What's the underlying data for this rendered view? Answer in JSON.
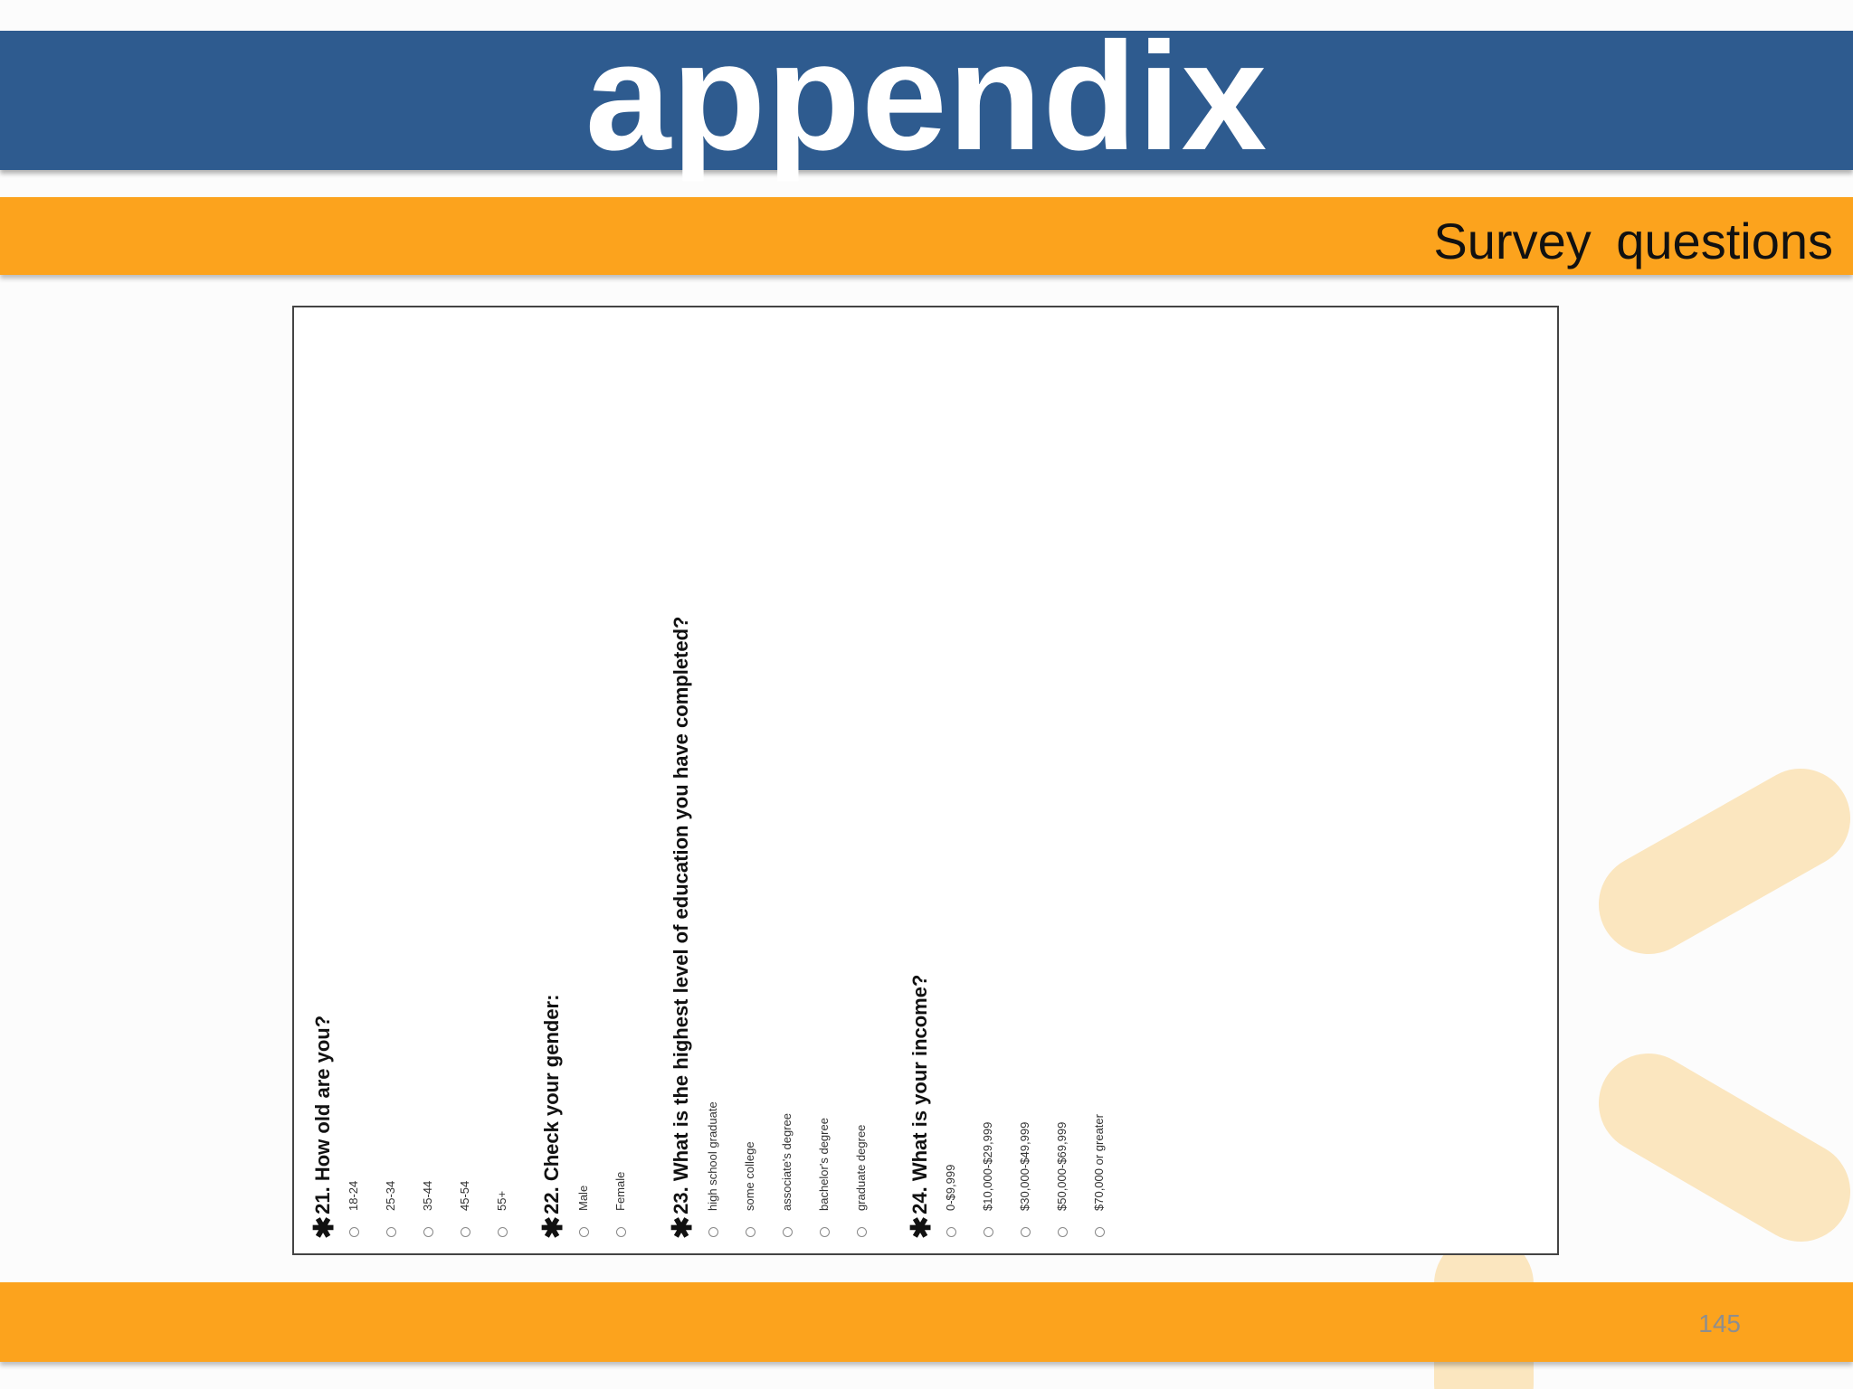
{
  "slide": {
    "title": "appendix",
    "subtitle": "Survey  questions",
    "page_number": "145"
  },
  "colors": {
    "title_bar": "#2e5b8f",
    "accent_bar": "#fca31d",
    "spark": "#fbe6bf"
  },
  "survey": {
    "q21": {
      "star": "✱",
      "label": "21. How old are you?",
      "options": [
        "18-24",
        "25-34",
        "35-44",
        "45-54",
        "55+"
      ]
    },
    "q22": {
      "star": "✱",
      "label": "22. Check your gender:",
      "options": [
        "Male",
        "Female"
      ]
    },
    "q23": {
      "star": "✱",
      "label": "23. What is the highest level of education you have completed?",
      "options": [
        "high school graduate",
        "some college",
        "associate's degree",
        "bachelor's degree",
        "graduate degree"
      ]
    },
    "q24": {
      "star": "✱",
      "label": "24. What is your income?",
      "options": [
        "0-$9,999",
        "$10,000-$29,999",
        "$30,000-$49,999",
        "$50,000-$69,999",
        "$70,000 or greater"
      ]
    }
  }
}
